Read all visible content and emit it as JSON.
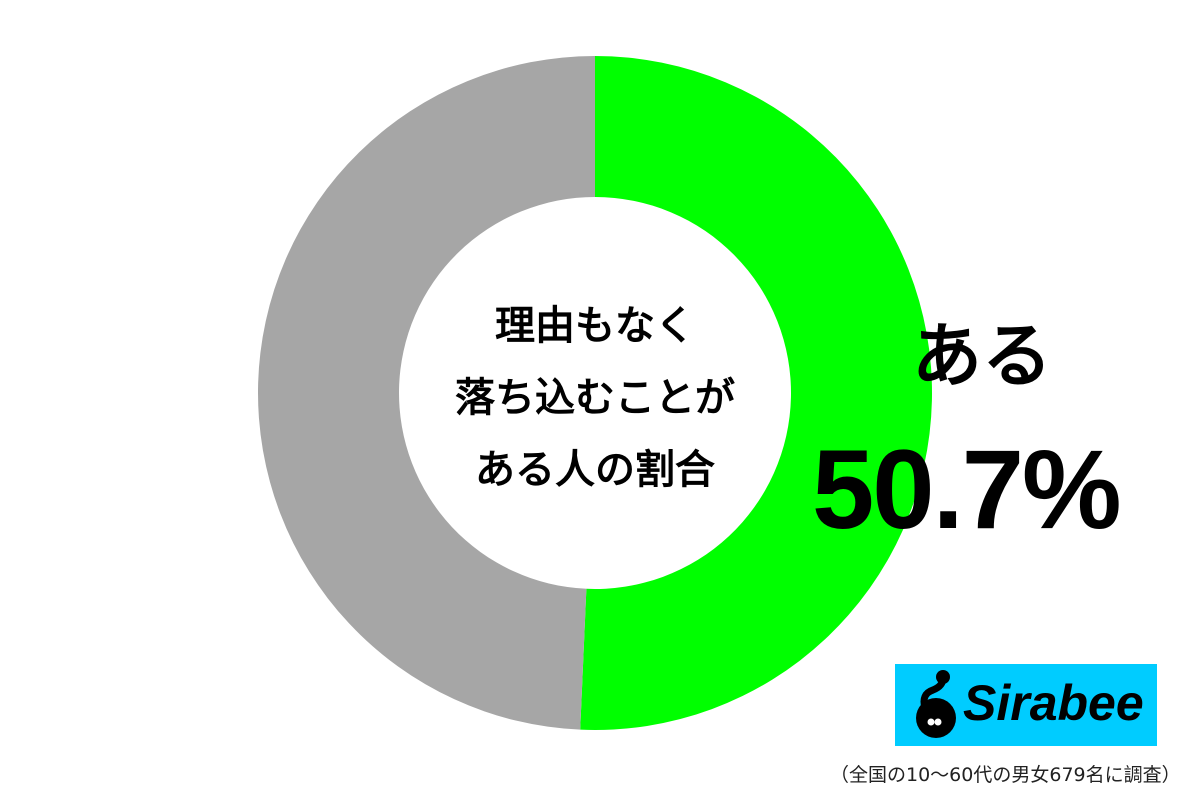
{
  "chart_data": {
    "type": "pie",
    "variant": "donut",
    "title_lines": [
      "理由もなく",
      "落ち込むことが",
      "ある人の割合"
    ],
    "slices": [
      {
        "label": "ある",
        "value": 50.7,
        "color": "#00ff00",
        "value_label": "50.7%"
      },
      {
        "label": "",
        "value": 49.3,
        "color": "#a6a6a6"
      }
    ],
    "start_angle": "12 o'clock",
    "direction": "clockwise"
  },
  "footnote": "（全国の10〜60代の男女679名に調査）",
  "logo": {
    "text": "Sirabee",
    "color": "#00ccff"
  }
}
